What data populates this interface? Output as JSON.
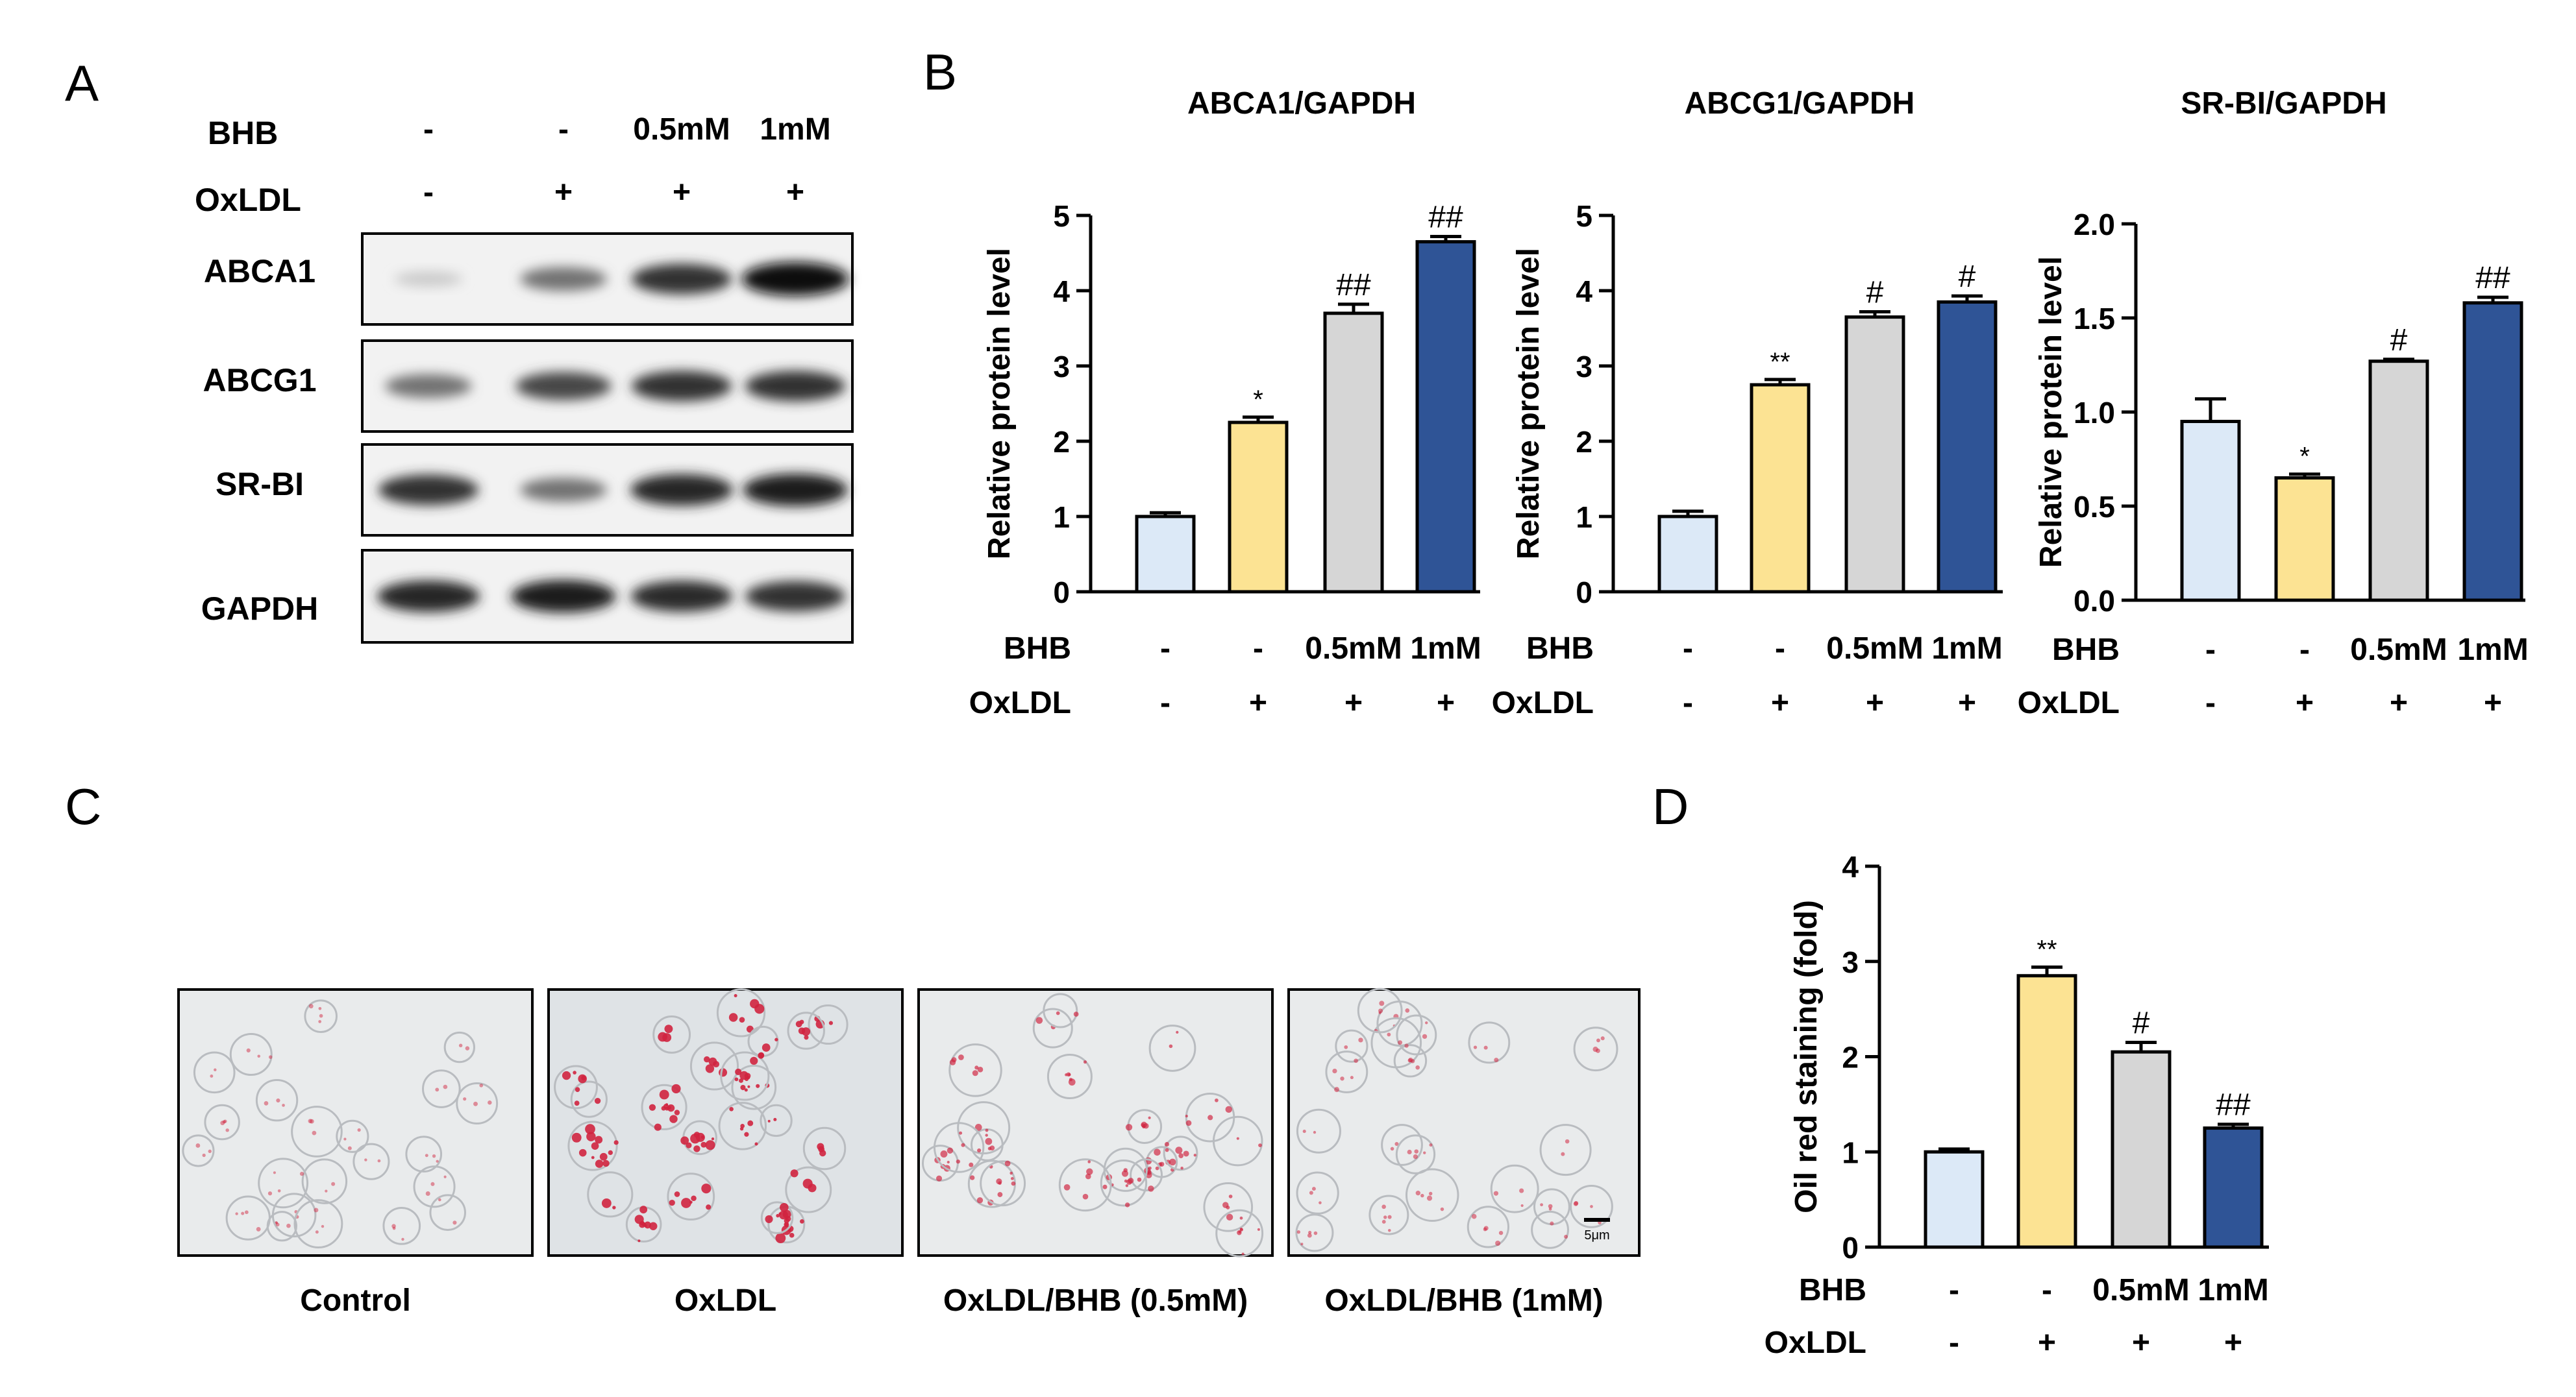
{
  "panel_labels": {
    "a": "A",
    "b": "B",
    "c": "C",
    "d": "D"
  },
  "colors": {
    "control": "#dce9f7",
    "oxldl": "#fce393",
    "bhb_low": "#d6d6d6",
    "bhb_high": "#2f5496",
    "edge": "#000000"
  },
  "western_blot": {
    "row_labels": {
      "bhb": "BHB",
      "oxldl": "OxLDL"
    },
    "bhb_values": [
      "-",
      "-",
      "0.5mM",
      "1mM"
    ],
    "oxldl_values": [
      "-",
      "+",
      "+",
      "+"
    ],
    "bands": [
      {
        "label": "ABCA1",
        "intensity": [
          0.15,
          0.55,
          0.85,
          1.0
        ]
      },
      {
        "label": "ABCG1",
        "intensity": [
          0.55,
          0.75,
          0.85,
          0.85
        ]
      },
      {
        "label": "SR-BI",
        "intensity": [
          0.85,
          0.55,
          0.9,
          0.95
        ]
      },
      {
        "label": "GAPDH",
        "intensity": [
          0.9,
          0.95,
          0.88,
          0.85
        ]
      }
    ]
  },
  "chart_data": [
    {
      "type": "bar",
      "title": "ABCA1/GAPDH",
      "ylabel": "Relative protein level",
      "ylim": [
        0,
        5
      ],
      "yticks": [
        "0",
        "1",
        "2",
        "3",
        "4",
        "5"
      ],
      "categories": [
        "-/-",
        "-/+",
        "0.5mM/+",
        "1mM/+"
      ],
      "values": [
        1.0,
        2.25,
        3.7,
        4.65
      ],
      "errors": [
        0.05,
        0.07,
        0.12,
        0.07
      ],
      "annotations": [
        "",
        "*",
        "##",
        "##"
      ],
      "row_labels": [
        "BHB",
        "OxLDL"
      ],
      "bhb": [
        "-",
        "-",
        "0.5mM",
        "1mM"
      ],
      "oxldl": [
        "-",
        "+",
        "+",
        "+"
      ]
    },
    {
      "type": "bar",
      "title": "ABCG1/GAPDH",
      "ylabel": "Relative protein level",
      "ylim": [
        0,
        5
      ],
      "yticks": [
        "0",
        "1",
        "2",
        "3",
        "4",
        "5"
      ],
      "categories": [
        "-/-",
        "-/+",
        "0.5mM/+",
        "1mM/+"
      ],
      "values": [
        1.0,
        2.75,
        3.65,
        3.85
      ],
      "errors": [
        0.07,
        0.07,
        0.07,
        0.08
      ],
      "annotations": [
        "",
        "**",
        "#",
        "#"
      ],
      "row_labels": [
        "BHB",
        "OxLDL"
      ],
      "bhb": [
        "-",
        "-",
        "0.5mM",
        "1mM"
      ],
      "oxldl": [
        "-",
        "+",
        "+",
        "+"
      ]
    },
    {
      "type": "bar",
      "title": "SR-BI/GAPDH",
      "ylabel": "Relative protein level",
      "ylim": [
        0,
        2.0
      ],
      "yticks": [
        "0.0",
        "0.5",
        "1.0",
        "1.5",
        "2.0"
      ],
      "categories": [
        "-/-",
        "-/+",
        "0.5mM/+",
        "1mM/+"
      ],
      "values": [
        0.95,
        0.65,
        1.27,
        1.58
      ],
      "errors": [
        0.12,
        0.02,
        0.01,
        0.03
      ],
      "annotations": [
        "",
        "*",
        "#",
        "##"
      ],
      "row_labels": [
        "BHB",
        "OxLDL"
      ],
      "bhb": [
        "-",
        "-",
        "0.5mM",
        "1mM"
      ],
      "oxldl": [
        "-",
        "+",
        "+",
        "+"
      ]
    },
    {
      "type": "bar",
      "title": "",
      "ylabel": "Oil red staining  (fold)",
      "ylim": [
        0,
        4
      ],
      "yticks": [
        "0",
        "1",
        "2",
        "3",
        "4"
      ],
      "categories": [
        "-/-",
        "-/+",
        "0.5mM/+",
        "1mM/+"
      ],
      "values": [
        1.0,
        2.85,
        2.05,
        1.25
      ],
      "errors": [
        0.03,
        0.09,
        0.1,
        0.04
      ],
      "annotations": [
        "",
        "**",
        "#",
        "##"
      ],
      "row_labels": [
        "BHB",
        "OxLDL"
      ],
      "bhb": [
        "-",
        "-",
        "0.5mM",
        "1mM"
      ],
      "oxldl": [
        "-",
        "+",
        "+",
        "+"
      ]
    }
  ],
  "micrographs": {
    "captions": [
      "Control",
      "OxLDL",
      "OxLDL/BHB (0.5mM)",
      "OxLDL/BHB (1mM)"
    ],
    "scale_bar_label": "5μm",
    "stain_level": [
      0.25,
      1.0,
      0.6,
      0.35
    ]
  }
}
